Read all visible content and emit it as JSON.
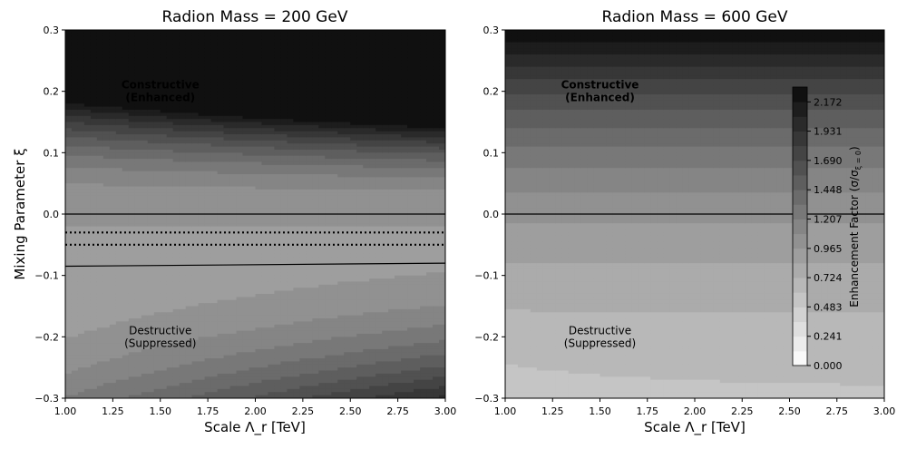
{
  "chart_data": [
    {
      "type": "heatmap",
      "title": "Radion Mass = 200 GeV",
      "xlabel": "Scale Λ_r [TeV]",
      "ylabel": "Mixing Parameter ξ",
      "xlim": [
        1.0,
        3.0
      ],
      "ylim": [
        -0.3,
        0.3
      ],
      "x_ticks": [
        "1.00",
        "1.25",
        "1.50",
        "1.75",
        "2.00",
        "2.25",
        "2.50",
        "2.75",
        "3.00"
      ],
      "y_ticks": [
        "−0.3",
        "−0.2",
        "−0.1",
        "0.0",
        "0.1",
        "0.2",
        "0.3"
      ],
      "annotations": [
        {
          "lines": [
            "Constructive",
            "(Enhanced)"
          ],
          "x": 1.5,
          "y": 0.2,
          "weight": "bold"
        },
        {
          "lines": [
            "Destructive",
            "(Suppressed)"
          ],
          "x": 1.5,
          "y": -0.2,
          "weight": "normal"
        }
      ],
      "contour_lines": [
        {
          "label": "unity",
          "style": "solid",
          "y_at_x_min": 0.0,
          "y_at_x_max": 0.0
        },
        {
          "label": "lower-solid",
          "style": "solid",
          "y_at_x_min": -0.085,
          "y_at_x_max": -0.08
        },
        {
          "label": "dotted-upper",
          "style": "dotted",
          "y_at_x_min": -0.03,
          "y_at_x_max": -0.03
        },
        {
          "label": "dotted-lower",
          "style": "dotted",
          "y_at_x_min": -0.05,
          "y_at_x_max": -0.05
        }
      ]
    },
    {
      "type": "heatmap",
      "title": "Radion Mass = 600 GeV",
      "xlabel": "Scale Λ_r [TeV]",
      "ylabel": "",
      "xlim": [
        1.0,
        3.0
      ],
      "ylim": [
        -0.3,
        0.3
      ],
      "x_ticks": [
        "1.00",
        "1.25",
        "1.50",
        "1.75",
        "2.00",
        "2.25",
        "2.50",
        "2.75",
        "3.00"
      ],
      "y_ticks": [
        "−0.3",
        "−0.2",
        "−0.1",
        "0.0",
        "0.1",
        "0.2",
        "0.3"
      ],
      "annotations": [
        {
          "lines": [
            "Constructive",
            "(Enhanced)"
          ],
          "x": 1.5,
          "y": 0.2,
          "weight": "bold"
        },
        {
          "lines": [
            "Destructive",
            "(Suppressed)"
          ],
          "x": 1.5,
          "y": -0.2,
          "weight": "normal"
        }
      ],
      "contour_lines": [
        {
          "label": "unity",
          "style": "solid",
          "y_at_x_min": 0.0,
          "y_at_x_max": 0.0
        }
      ]
    }
  ],
  "colorbar": {
    "label": "Enhancement Factor (σ/σ",
    "label_sub": "ξ = 0",
    "label_end": ")",
    "vmin": 0.0,
    "vmax": 2.294,
    "ticks": [
      "0.000",
      "0.241",
      "0.483",
      "0.724",
      "0.965",
      "1.207",
      "1.448",
      "1.690",
      "1.931",
      "2.172"
    ],
    "colormap": "Greys"
  }
}
